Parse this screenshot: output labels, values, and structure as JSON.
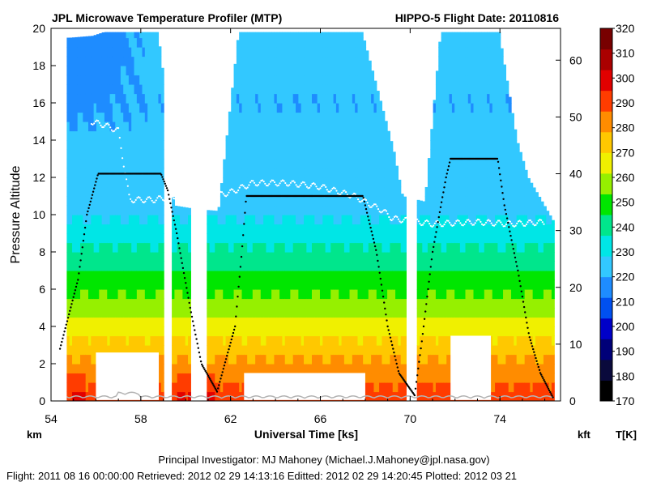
{
  "chart_data": {
    "type": "heatmap",
    "title_left": "JPL Microwave Temperature Profiler (MTP)",
    "title_right": "HIPPO-5  Flight Date: 20110816",
    "xlabel": "Universal Time [ks]",
    "ylabel": "Pressure Altitude",
    "y_unit_left": "km",
    "y_unit_right": "kft",
    "colorbar_label": "T[K]",
    "xlim": [
      54,
      76.7
    ],
    "ylim_km": [
      0,
      20
    ],
    "ylim_kft": [
      0,
      65.6
    ],
    "x_ticks": [
      "54",
      "58",
      "62",
      "66",
      "70",
      "74"
    ],
    "y_ticks_km": [
      "0",
      "2",
      "4",
      "6",
      "8",
      "10",
      "12",
      "14",
      "16",
      "18",
      "20"
    ],
    "y_ticks_kft": [
      "0",
      "10",
      "20",
      "30",
      "40",
      "50",
      "60"
    ],
    "colorbar_ticks": [
      "170",
      "180",
      "190",
      "200",
      "210",
      "220",
      "230",
      "240",
      "250",
      "260",
      "270",
      "280",
      "290",
      "300",
      "310",
      "320"
    ],
    "colorbar_range": [
      170,
      320
    ],
    "colorbar_colors": [
      "#000000",
      "#0a0a3c",
      "#000078",
      "#0000c8",
      "#0050f0",
      "#1e8cff",
      "#32c8ff",
      "#00e6e6",
      "#00e68c",
      "#00e600",
      "#96f000",
      "#f0f000",
      "#ffc800",
      "#ff8c00",
      "#ff3c00",
      "#e10000",
      "#aa0000",
      "#780000"
    ],
    "flight_track_km": [
      [
        54.4,
        2.8
      ],
      [
        55.2,
        6.5
      ],
      [
        55.6,
        10.0
      ],
      [
        56.1,
        12.2
      ],
      [
        58.9,
        12.2
      ],
      [
        59.2,
        11.3
      ],
      [
        59.6,
        9.0
      ],
      [
        60.2,
        5.0
      ],
      [
        60.7,
        2.0
      ],
      [
        61.4,
        0.5
      ],
      [
        62.2,
        4.0
      ],
      [
        62.5,
        8.0
      ],
      [
        62.7,
        11.0
      ],
      [
        67.9,
        11.0
      ],
      [
        68.5,
        8.0
      ],
      [
        69.0,
        4.0
      ],
      [
        69.5,
        1.5
      ],
      [
        70.2,
        0.3
      ],
      [
        70.5,
        3.0
      ],
      [
        71.0,
        8.0
      ],
      [
        71.6,
        12.0
      ],
      [
        71.8,
        13.0
      ],
      [
        73.9,
        13.0
      ],
      [
        74.2,
        10.5
      ],
      [
        74.8,
        7.0
      ],
      [
        75.3,
        3.5
      ],
      [
        75.8,
        1.5
      ],
      [
        76.4,
        0.1
      ]
    ],
    "tropopause_km": [
      [
        55.8,
        15.0
      ],
      [
        56.4,
        14.8
      ],
      [
        57.0,
        14.5
      ],
      [
        57.5,
        10.8
      ],
      [
        58.6,
        10.8
      ],
      [
        59.5,
        11.0
      ],
      [
        60.0,
        11.2
      ],
      [
        61.3,
        11.0
      ],
      [
        62.0,
        11.2
      ],
      [
        63.0,
        11.7
      ],
      [
        64.5,
        11.7
      ],
      [
        66.0,
        11.5
      ],
      [
        67.5,
        11.0
      ],
      [
        68.3,
        10.5
      ],
      [
        68.8,
        10.2
      ],
      [
        69.2,
        9.8
      ],
      [
        71.0,
        9.5
      ],
      [
        73.0,
        9.6
      ],
      [
        74.5,
        9.5
      ],
      [
        76.0,
        9.6
      ]
    ],
    "cloud_blocks_km": [
      [
        56.0,
        58.8,
        0.05,
        2.6
      ],
      [
        62.6,
        68.0,
        0.05,
        1.5
      ],
      [
        71.8,
        73.6,
        0.05,
        3.5
      ]
    ],
    "data_gaps_ks": [
      [
        58.9,
        59.3
      ],
      [
        60.2,
        60.9
      ],
      [
        69.8,
        70.3
      ]
    ],
    "data_caps_km": [
      [
        54.8,
        19.5
      ],
      [
        55.8,
        19.6
      ],
      [
        56.3,
        19.8
      ],
      [
        58.7,
        19.8
      ],
      [
        59.2,
        15.0
      ],
      [
        59.4,
        10.5
      ],
      [
        60.4,
        10.3
      ],
      [
        61.4,
        10.2
      ],
      [
        62.3,
        19.8
      ],
      [
        67.8,
        19.8
      ],
      [
        69.2,
        13.5
      ],
      [
        69.6,
        11.0
      ],
      [
        70.6,
        10.7
      ],
      [
        71.3,
        19.8
      ],
      [
        73.9,
        19.8
      ],
      [
        74.7,
        14.0
      ],
      [
        75.2,
        12.0
      ],
      [
        76.4,
        9.5
      ]
    ],
    "tropopause_temp_K": 222,
    "surface_temp_K": 298,
    "stratosphere_temp_K": 232,
    "layer_temps": [
      {
        "alt_km": 0.0,
        "temp_K": 298
      },
      {
        "alt_km": 2.0,
        "temp_K": 285
      },
      {
        "alt_km": 4.0,
        "temp_K": 268
      },
      {
        "alt_km": 6.0,
        "temp_K": 252
      },
      {
        "alt_km": 8.0,
        "temp_K": 238
      },
      {
        "alt_km": 10.0,
        "temp_K": 225
      },
      {
        "alt_km": 12.0,
        "temp_K": 220
      },
      {
        "alt_km": 16.0,
        "temp_K": 218
      },
      {
        "alt_km": 20.0,
        "temp_K": 220
      }
    ]
  },
  "footer": {
    "investigator": "Principal Investigator: MJ Mahoney (Michael.J.Mahoney@jpl.nasa.gov)",
    "timestamps": "Flight: 2011 08 16 00:00:00   Retrieved: 2012 02 29 14:13:16   Editted: 2012 02 29 14:20:45   Plotted: 2012 03 21"
  },
  "colors": {
    "flight_track": "#000000",
    "tropopause": "#ffffff",
    "ground_line": "#b4b4b4",
    "cloud_fill": "#ffffff",
    "plot_bg": "#ffffff"
  }
}
